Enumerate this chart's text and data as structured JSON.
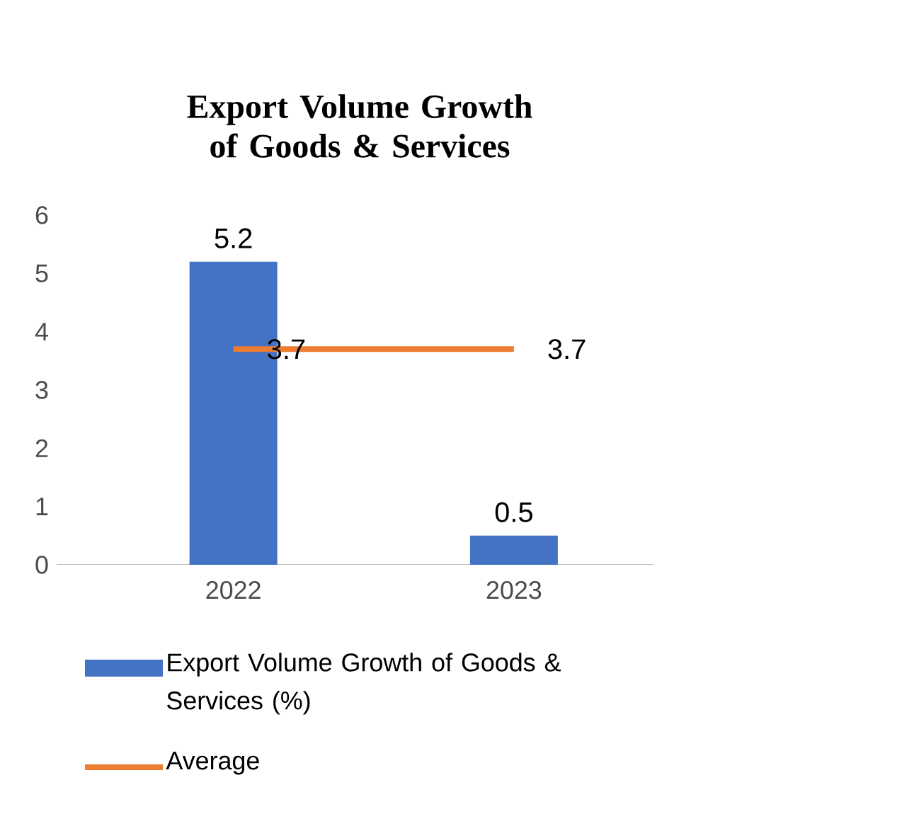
{
  "chart_data": {
    "type": "bar",
    "title": "Export Volume Growth of Goods & Services",
    "categories": [
      "2022",
      "2023"
    ],
    "series": [
      {
        "name": "Export Volume Growth of Goods & Services (%)",
        "color": "#4472c4",
        "values": [
          5.2,
          0.5
        ]
      },
      {
        "name": "Average",
        "type": "line",
        "color": "#ed7d31",
        "values": [
          3.7,
          3.7
        ]
      }
    ],
    "ylim": [
      0,
      6
    ],
    "yticks": [
      0,
      1,
      2,
      3,
      4,
      5,
      6
    ],
    "grid": false,
    "legend": "bottom",
    "data_labels": true
  }
}
